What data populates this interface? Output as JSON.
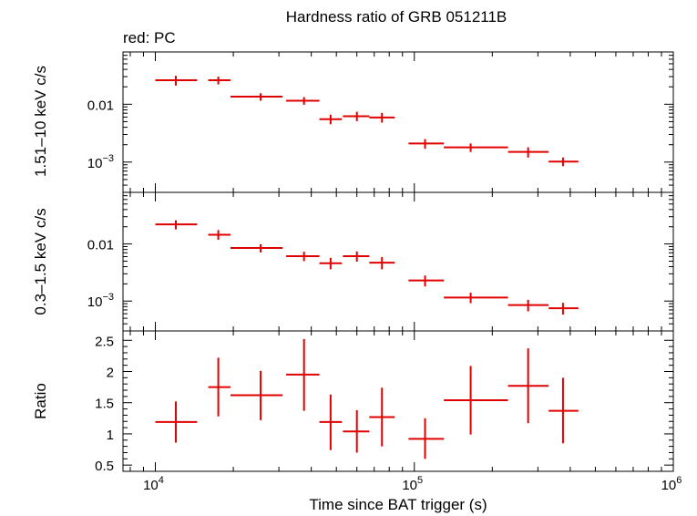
{
  "chart_data": [
    {
      "type": "scatter",
      "title": "Hardness ratio of GRB 051211B",
      "subtitle": "red: PC",
      "ylabel": "1.51–10 keV c/s",
      "xscale": "log",
      "yscale": "log",
      "xlim": [
        7500,
        1000000
      ],
      "ylim": [
        0.0003,
        0.08
      ],
      "yticks": [
        {
          "value": 0.01,
          "label": "0.01",
          "exp": ""
        },
        {
          "value": 0.001,
          "label": "10",
          "exp": "−3"
        }
      ],
      "series": [
        {
          "color": "#e00000",
          "points": [
            {
              "x": 12000,
              "xlo": 10000,
              "xhi": 14500,
              "y": 0.026,
              "ylo": 0.021,
              "yhi": 0.031
            },
            {
              "x": 17500,
              "xlo": 16000,
              "xhi": 19500,
              "y": 0.026,
              "ylo": 0.022,
              "yhi": 0.03
            },
            {
              "x": 25500,
              "xlo": 19500,
              "xhi": 31000,
              "y": 0.0135,
              "ylo": 0.0115,
              "yhi": 0.0155
            },
            {
              "x": 37500,
              "xlo": 32000,
              "xhi": 43000,
              "y": 0.0115,
              "ylo": 0.0098,
              "yhi": 0.0133
            },
            {
              "x": 47500,
              "xlo": 43000,
              "xhi": 52500,
              "y": 0.0055,
              "ylo": 0.0045,
              "yhi": 0.0066
            },
            {
              "x": 60000,
              "xlo": 53000,
              "xhi": 67000,
              "y": 0.0062,
              "ylo": 0.0051,
              "yhi": 0.0074
            },
            {
              "x": 75000,
              "xlo": 67000,
              "xhi": 84000,
              "y": 0.0059,
              "ylo": 0.0048,
              "yhi": 0.0071
            },
            {
              "x": 110000,
              "xlo": 95000,
              "xhi": 130000,
              "y": 0.0021,
              "ylo": 0.0017,
              "yhi": 0.0025
            },
            {
              "x": 165000,
              "xlo": 130000,
              "xhi": 230000,
              "y": 0.0018,
              "ylo": 0.0015,
              "yhi": 0.0021
            },
            {
              "x": 275000,
              "xlo": 230000,
              "xhi": 330000,
              "y": 0.0015,
              "ylo": 0.0012,
              "yhi": 0.0018
            },
            {
              "x": 375000,
              "xlo": 330000,
              "xhi": 430000,
              "y": 0.00102,
              "ylo": 0.00085,
              "yhi": 0.0012
            }
          ]
        }
      ]
    },
    {
      "type": "scatter",
      "ylabel": "0.3–1.5 keV c/s",
      "xscale": "log",
      "yscale": "log",
      "xlim": [
        7500,
        1000000
      ],
      "ylim": [
        0.0003,
        0.08
      ],
      "yticks": [
        {
          "value": 0.01,
          "label": "0.01",
          "exp": ""
        },
        {
          "value": 0.001,
          "label": "10",
          "exp": "−3"
        }
      ],
      "series": [
        {
          "color": "#e00000",
          "points": [
            {
              "x": 12000,
              "xlo": 10000,
              "xhi": 14500,
              "y": 0.022,
              "ylo": 0.018,
              "yhi": 0.026
            },
            {
              "x": 17500,
              "xlo": 16000,
              "xhi": 19500,
              "y": 0.0145,
              "ylo": 0.0118,
              "yhi": 0.0175
            },
            {
              "x": 25500,
              "xlo": 19500,
              "xhi": 31000,
              "y": 0.0085,
              "ylo": 0.0071,
              "yhi": 0.0099
            },
            {
              "x": 37500,
              "xlo": 32000,
              "xhi": 43000,
              "y": 0.0061,
              "ylo": 0.005,
              "yhi": 0.0073
            },
            {
              "x": 47500,
              "xlo": 43000,
              "xhi": 52500,
              "y": 0.0046,
              "ylo": 0.0036,
              "yhi": 0.0057
            },
            {
              "x": 60000,
              "xlo": 53000,
              "xhi": 67000,
              "y": 0.0061,
              "ylo": 0.0049,
              "yhi": 0.0074
            },
            {
              "x": 75000,
              "xlo": 67000,
              "xhi": 84000,
              "y": 0.0047,
              "ylo": 0.0036,
              "yhi": 0.0059
            },
            {
              "x": 110000,
              "xlo": 95000,
              "xhi": 130000,
              "y": 0.0023,
              "ylo": 0.0018,
              "yhi": 0.0028
            },
            {
              "x": 165000,
              "xlo": 130000,
              "xhi": 230000,
              "y": 0.00115,
              "ylo": 0.00092,
              "yhi": 0.0014
            },
            {
              "x": 275000,
              "xlo": 230000,
              "xhi": 330000,
              "y": 0.00085,
              "ylo": 0.00066,
              "yhi": 0.00105
            },
            {
              "x": 375000,
              "xlo": 330000,
              "xhi": 430000,
              "y": 0.00075,
              "ylo": 0.00058,
              "yhi": 0.00093
            }
          ]
        }
      ]
    },
    {
      "type": "scatter",
      "xlabel": "Time since BAT trigger (s)",
      "ylabel": "Ratio",
      "xscale": "log",
      "yscale": "linear",
      "xlim": [
        7500,
        1000000
      ],
      "ylim": [
        0.4,
        2.65
      ],
      "xticks": [
        {
          "value": 10000,
          "label": "10",
          "exp": "4"
        },
        {
          "value": 100000,
          "label": "10",
          "exp": "5"
        },
        {
          "value": 1000000,
          "label": "10",
          "exp": "6"
        }
      ],
      "yticks": [
        {
          "value": 0.5,
          "label": "0.5",
          "exp": ""
        },
        {
          "value": 1,
          "label": "1",
          "exp": ""
        },
        {
          "value": 1.5,
          "label": "1.5",
          "exp": ""
        },
        {
          "value": 2,
          "label": "2",
          "exp": ""
        },
        {
          "value": 2.5,
          "label": "2.5",
          "exp": ""
        }
      ],
      "series": [
        {
          "color": "#e00000",
          "points": [
            {
              "x": 12000,
              "xlo": 10000,
              "xhi": 14500,
              "y": 1.19,
              "ylo": 0.86,
              "yhi": 1.52
            },
            {
              "x": 17500,
              "xlo": 16000,
              "xhi": 19500,
              "y": 1.75,
              "ylo": 1.28,
              "yhi": 2.22
            },
            {
              "x": 25500,
              "xlo": 19500,
              "xhi": 31000,
              "y": 1.62,
              "ylo": 1.22,
              "yhi": 2.01
            },
            {
              "x": 37500,
              "xlo": 32000,
              "xhi": 43000,
              "y": 1.95,
              "ylo": 1.37,
              "yhi": 2.52
            },
            {
              "x": 47500,
              "xlo": 43000,
              "xhi": 52500,
              "y": 1.19,
              "ylo": 0.74,
              "yhi": 1.63
            },
            {
              "x": 60000,
              "xlo": 53000,
              "xhi": 67000,
              "y": 1.04,
              "ylo": 0.7,
              "yhi": 1.38
            },
            {
              "x": 75000,
              "xlo": 67000,
              "xhi": 84000,
              "y": 1.27,
              "ylo": 0.8,
              "yhi": 1.74
            },
            {
              "x": 110000,
              "xlo": 95000,
              "xhi": 130000,
              "y": 0.92,
              "ylo": 0.6,
              "yhi": 1.25
            },
            {
              "x": 165000,
              "xlo": 130000,
              "xhi": 230000,
              "y": 1.54,
              "ylo": 0.99,
              "yhi": 2.09
            },
            {
              "x": 275000,
              "xlo": 230000,
              "xhi": 330000,
              "y": 1.77,
              "ylo": 1.17,
              "yhi": 2.37
            },
            {
              "x": 375000,
              "xlo": 330000,
              "xhi": 430000,
              "y": 1.37,
              "ylo": 0.85,
              "yhi": 1.9
            }
          ]
        }
      ]
    }
  ]
}
